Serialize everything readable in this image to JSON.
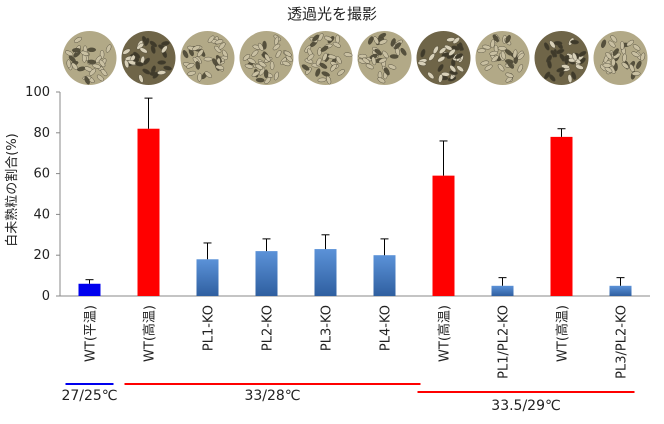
{
  "photo_title": "透過光を撮影",
  "chart_data": {
    "type": "bar",
    "title": "",
    "xlabel": "",
    "ylabel": "白未熟粒の割合(%)",
    "ylim": [
      0,
      100
    ],
    "yticks": [
      0,
      20,
      40,
      60,
      80,
      100
    ],
    "grid": false,
    "legend": "none",
    "categories": [
      "WT(平温)",
      "WT(高温)",
      "PL1-KO",
      "PL2-KO",
      "PL3-KO",
      "PL4-KO",
      "WT(高温)",
      "PL1/PL2-KO",
      "WT(高温)",
      "PL3/PL2-KO"
    ],
    "values": [
      6,
      82,
      18,
      22,
      23,
      20,
      59,
      5,
      78,
      5
    ],
    "error": [
      2,
      15,
      8,
      6,
      7,
      8,
      17,
      4,
      4,
      4
    ],
    "bar_colors": [
      "#0000ee",
      "#ff0000",
      "#4a7ec8",
      "#4a7ec8",
      "#4a7ec8",
      "#4a7ec8",
      "#ff0000",
      "#4a7ec8",
      "#ff0000",
      "#4a7ec8"
    ],
    "groups": [
      {
        "label": "27/25℃",
        "color": "#0000ee",
        "bars": [
          0,
          0
        ]
      },
      {
        "label": "33/28℃",
        "color": "#ff0000",
        "bars": [
          1,
          5
        ]
      },
      {
        "label": "33.5/29℃",
        "color": "#ff0000",
        "bars": [
          6,
          9
        ]
      }
    ]
  }
}
